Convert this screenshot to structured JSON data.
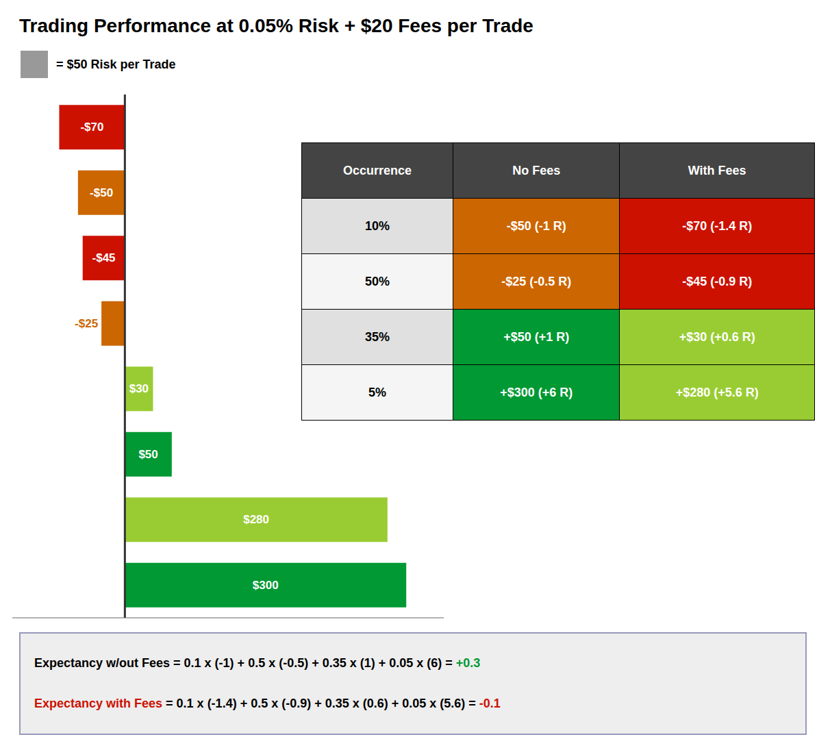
{
  "chart_data": {
    "type": "bar",
    "orientation": "horizontal",
    "title": "Trading Performance at 0.05% Risk + $20 Fees per Trade",
    "categories": [
      null,
      null,
      null,
      null,
      null,
      null,
      null,
      null
    ],
    "values": [
      -70,
      -50,
      -45,
      -25,
      30,
      50,
      280,
      300
    ],
    "value_labels": [
      "-$70",
      "-$50",
      "-$45",
      "-$25",
      "$30",
      "$50",
      "$280",
      "$300"
    ],
    "colors": [
      "#cc1100",
      "#cc6600",
      "#cc1100",
      "#cc6600",
      "#99cc33",
      "#009933",
      "#99cc33",
      "#009933"
    ],
    "data_labels": true,
    "xlim": [
      -120,
      340
    ],
    "tick_labels": false,
    "grid": false,
    "annotations": [
      {
        "text": "= $50 Risk per Trade",
        "color": "#999999"
      }
    ],
    "table": {
      "headers": [
        "Occurrence",
        "No Fees",
        "With Fees"
      ],
      "header_color": "#444444",
      "rows": [
        {
          "cells": [
            "10%",
            "-$50 (-1 R)",
            "-$70 (-1.4 R)"
          ],
          "colors": [
            "#e0e0e0",
            "#cc6600",
            "#cc1100"
          ]
        },
        {
          "cells": [
            "50%",
            "-$25 (-0.5 R)",
            "-$45 (-0.9 R)"
          ],
          "colors": [
            "#f5f5f5",
            "#cc6600",
            "#cc1100"
          ]
        },
        {
          "cells": [
            "35%",
            "+$50 (+1 R)",
            "+$30 (+0.6 R)"
          ],
          "colors": [
            "#e0e0e0",
            "#009933",
            "#99cc33"
          ]
        },
        {
          "cells": [
            "5%",
            "+$300 (+6 R)",
            "+$280 (+5.6 R)"
          ],
          "colors": [
            "#f5f5f5",
            "#009933",
            "#99cc33"
          ]
        }
      ]
    },
    "formulas": [
      [
        {
          "text": "Expectancy w/out Fees = 0.1 x (-1) + 0.5 x (-0.5) + 0.35 x (1) + 0.05 x (6) = ",
          "color": "#000000"
        },
        {
          "text": "+0.3",
          "color": "#009933"
        }
      ],
      [
        {
          "text": "Expectancy with Fees",
          "color": "#cc1100"
        },
        {
          "text": " = 0.1 x (-1.4) + 0.5 x (-0.9) + 0.35 x (0.6) + 0.05 x (5.6) = ",
          "color": "#000000"
        },
        {
          "text": "-0.1",
          "color": "#cc1100"
        }
      ]
    ],
    "formula_box": {
      "color": "#eeeeee",
      "border_color": "#9999bb"
    }
  }
}
